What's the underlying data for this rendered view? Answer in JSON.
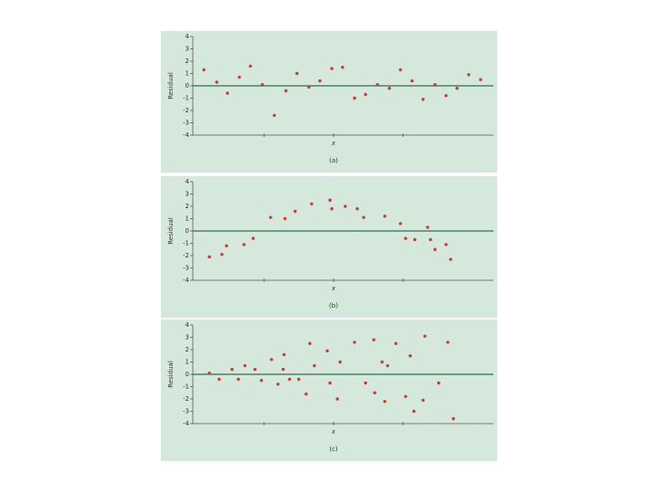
{
  "chart_data": [
    {
      "type": "scatter",
      "caption": "(a)",
      "x_label": "x",
      "y_label": "Residual",
      "color": "#d9342b",
      "background": "#d5e8dc",
      "zero_line_color": "#2e6e57",
      "xlim": [
        0,
        100
      ],
      "ylim": [
        -4,
        4
      ],
      "yticks": [
        -4,
        -3,
        -2,
        -1,
        0,
        1,
        2,
        3,
        4
      ],
      "x": [
        5.4,
        9.6,
        13.1,
        17.0,
        20.6,
        24.5,
        28.4,
        32.2,
        35.8,
        39.7,
        43.3,
        47.2,
        50.7,
        54.6,
        58.2,
        62.1,
        66.0,
        69.6,
        73.4,
        77.0,
        80.9,
        84.5,
        88.1,
        91.9,
        95.8
      ],
      "values": [
        1.3,
        0.3,
        -0.6,
        0.7,
        1.6,
        0.1,
        -2.4,
        -0.4,
        1.0,
        -0.1,
        0.4,
        1.4,
        1.5,
        -1.0,
        -0.7,
        0.1,
        -0.2,
        1.3,
        0.4,
        -1.1,
        0.1,
        -0.8,
        -0.2,
        0.9,
        0.5
      ]
    },
    {
      "type": "scatter",
      "caption": "(b)",
      "x_label": "x",
      "y_label": "Residual",
      "color": "#d9342b",
      "background": "#d5e8dc",
      "zero_line_color": "#2e6e57",
      "xlim": [
        0,
        100
      ],
      "ylim": [
        -4,
        4
      ],
      "yticks": [
        -4,
        -3,
        -2,
        -1,
        0,
        1,
        2,
        3,
        4
      ],
      "x": [
        7.2,
        11.3,
        12.8,
        18.5,
        21.5,
        27.2,
        31.9,
        35.2,
        40.6,
        46.6,
        47.2,
        51.6,
        55.5,
        57.6,
        64.5,
        69.6,
        71.3,
        74.3,
        78.5,
        79.4,
        80.9,
        84.5,
        86.0
      ],
      "values": [
        -2.1,
        -1.9,
        -1.2,
        -1.1,
        -0.6,
        1.1,
        1.0,
        1.6,
        2.2,
        2.5,
        1.8,
        2.0,
        1.8,
        1.1,
        1.2,
        0.6,
        -0.6,
        -0.7,
        0.3,
        -0.7,
        -1.5,
        -1.1,
        -2.3
      ]
    },
    {
      "type": "scatter",
      "caption": "(c)",
      "x_label": "x",
      "y_label": "Residual",
      "color": "#d9342b",
      "background": "#d5e8dc",
      "zero_line_color": "#2e6e57",
      "xlim": [
        0,
        100
      ],
      "ylim": [
        -4,
        4
      ],
      "yticks": [
        -4,
        -3,
        -2,
        -1,
        0,
        1,
        2,
        3,
        4
      ],
      "x": [
        7.2,
        10.4,
        14.6,
        16.7,
        18.8,
        22.1,
        24.2,
        27.5,
        29.6,
        31.3,
        31.6,
        33.4,
        36.4,
        38.8,
        40.0,
        41.5,
        45.7,
        46.6,
        49.0,
        49.9,
        54.6,
        58.2,
        60.9,
        61.2,
        63.6,
        64.5,
        65.4,
        68.1,
        71.3,
        72.8,
        74.0,
        77.0,
        77.6,
        82.1,
        85.1,
        86.9
      ],
      "values": [
        0.1,
        -0.4,
        0.4,
        -0.4,
        0.7,
        0.4,
        -0.5,
        1.2,
        -0.8,
        0.4,
        1.6,
        -0.4,
        -0.4,
        -1.6,
        2.5,
        0.7,
        1.9,
        -0.7,
        -2.0,
        1.0,
        2.6,
        -0.7,
        2.8,
        -1.5,
        1.0,
        -2.2,
        0.7,
        2.5,
        -1.8,
        1.5,
        -3.0,
        -2.1,
        3.1,
        -0.7,
        2.6,
        -3.6
      ]
    }
  ]
}
